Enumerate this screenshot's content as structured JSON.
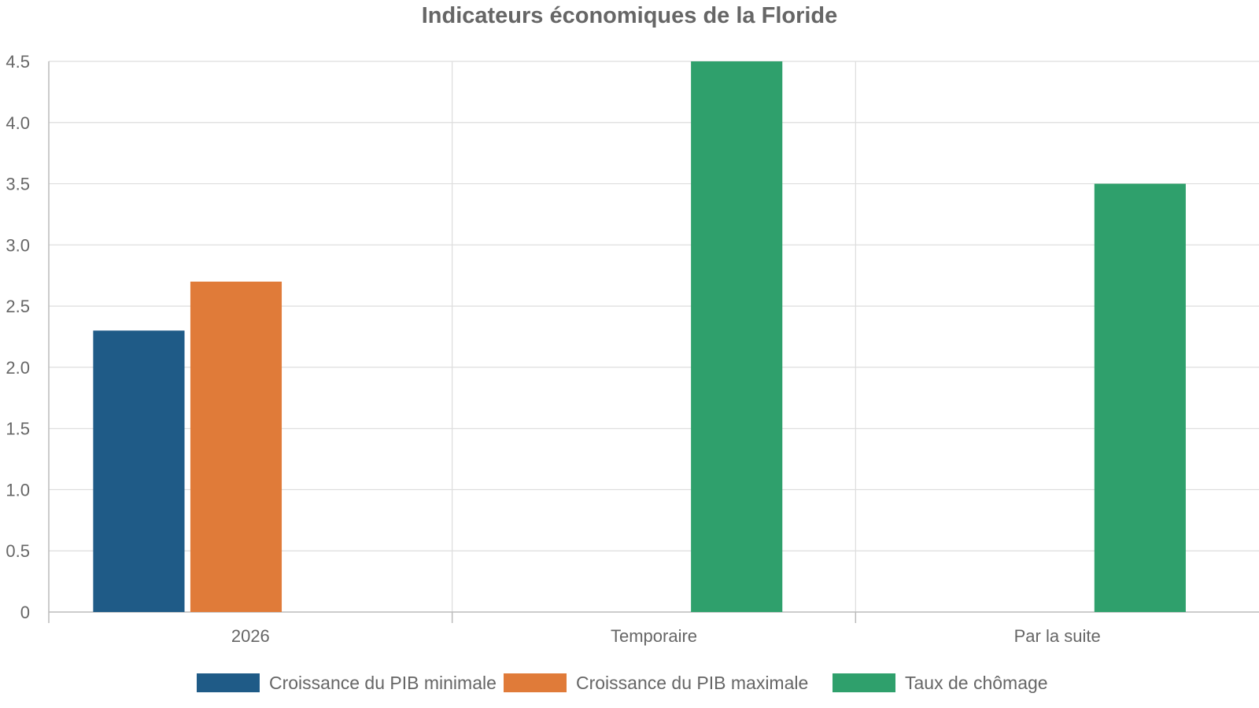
{
  "chart_data": {
    "type": "bar",
    "title": "Indicateurs économiques de la Floride",
    "xlabel": "",
    "ylabel": "",
    "categories": [
      "2026",
      "Temporaire",
      "Par la suite"
    ],
    "ylim": [
      0,
      4.5
    ],
    "yticks": [
      "0",
      "0.5",
      "1.0",
      "1.5",
      "2.0",
      "2.5",
      "3.0",
      "3.5",
      "4.0",
      "4.5"
    ],
    "ytick_values": [
      0,
      0.5,
      1,
      1.5,
      2,
      2.5,
      3,
      3.5,
      4,
      4.5
    ],
    "grid": true,
    "legend_position": "bottom",
    "series": [
      {
        "name": "Croissance du PIB minimale",
        "color": "#1f5b87",
        "values": [
          2.3,
          null,
          null
        ]
      },
      {
        "name": "Croissance du PIB maximale",
        "color": "#e07b39",
        "values": [
          2.7,
          null,
          null
        ]
      },
      {
        "name": "Taux de chômage",
        "color": "#2fa06c",
        "values": [
          null,
          4.5,
          3.5
        ]
      }
    ]
  }
}
